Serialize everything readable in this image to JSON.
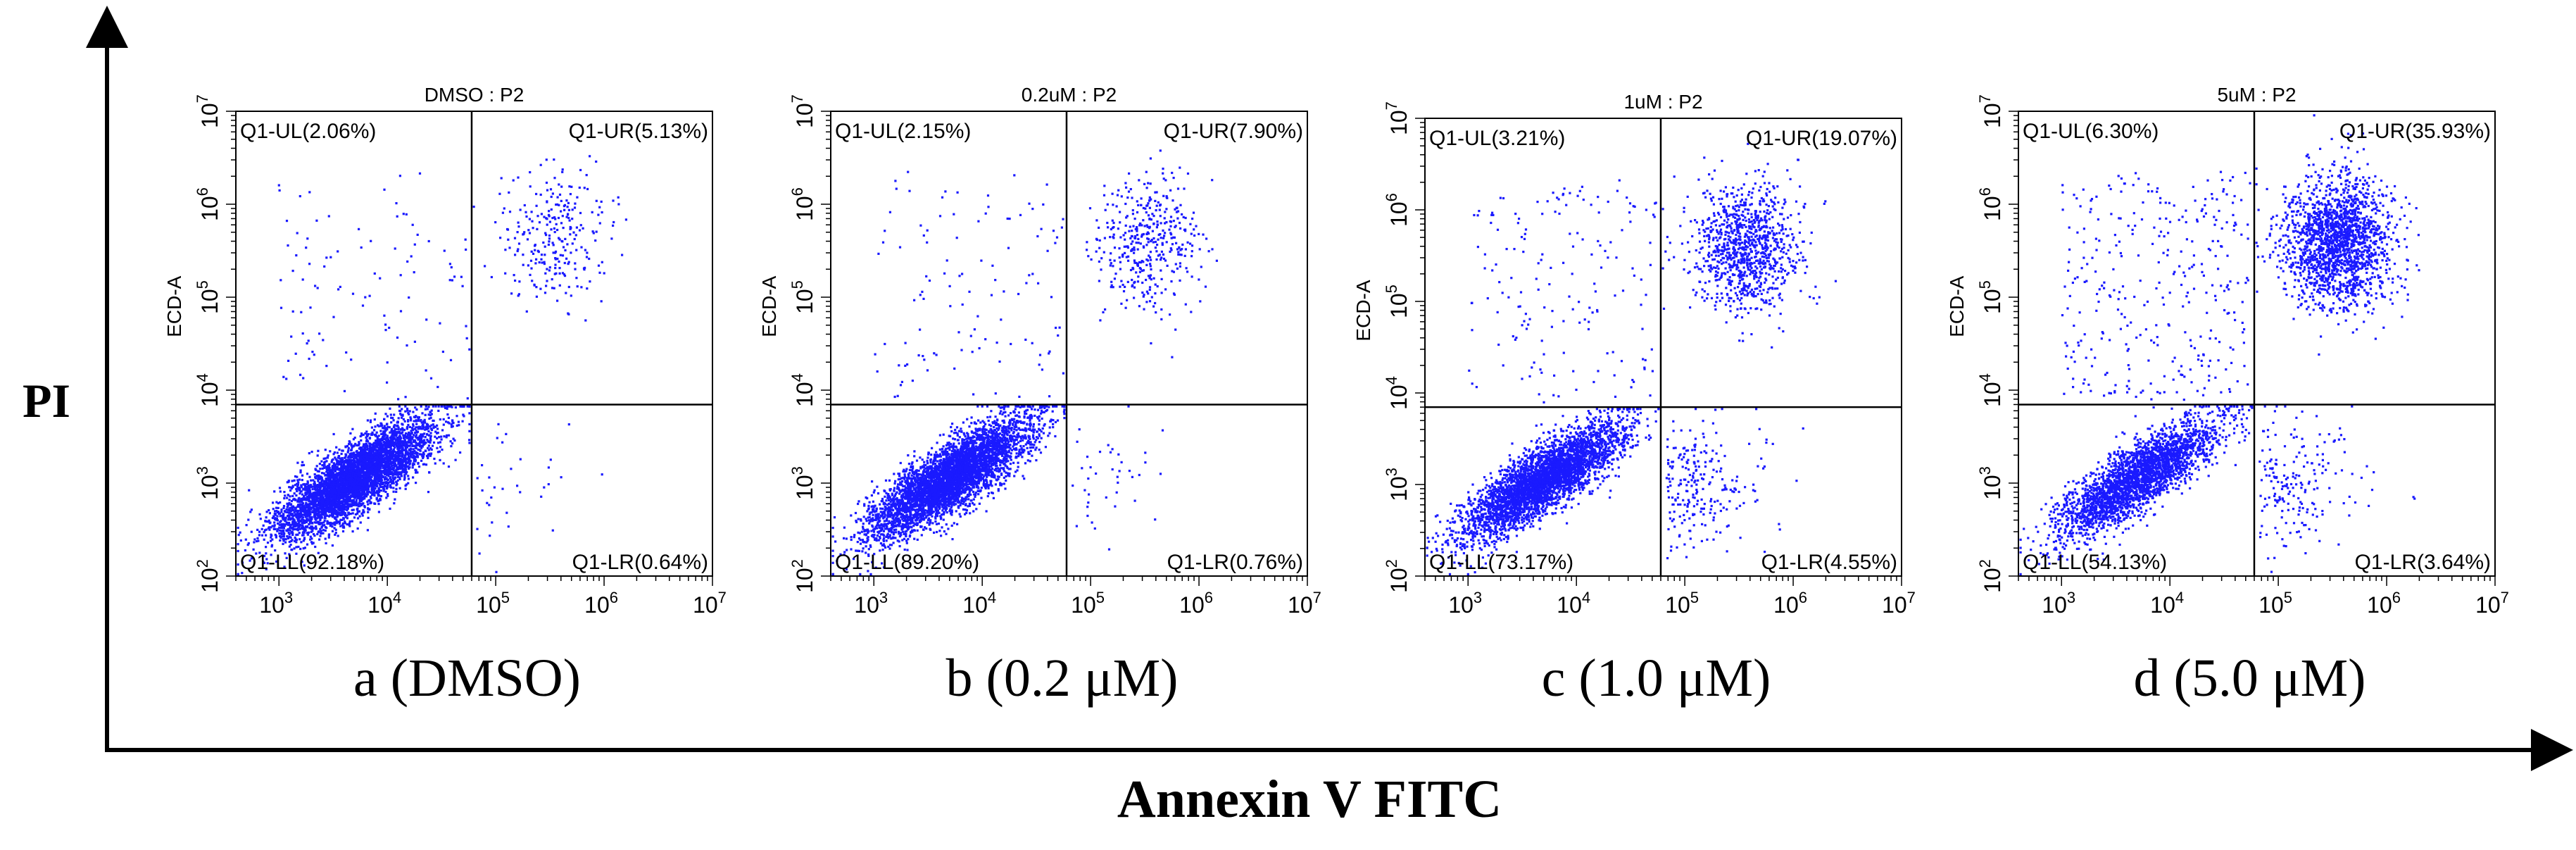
{
  "figure": {
    "y_axis_label": "PI",
    "x_axis_label": "Annexin V FITC"
  },
  "chart_data": [
    {
      "type": "scatter",
      "title": "DMSO : P2",
      "caption": "a (DMSO)",
      "xlabel": "",
      "ylabel": "ECD-A",
      "xscale": "log",
      "yscale": "log",
      "xlim": [
        400,
        10000000
      ],
      "ylim": [
        100,
        10000000
      ],
      "xticks": [
        {
          "b": "10",
          "e": "3",
          "v": 1000
        },
        {
          "b": "10",
          "e": "4",
          "v": 10000
        },
        {
          "b": "10",
          "e": "5",
          "v": 100000
        },
        {
          "b": "10",
          "e": "6",
          "v": 1000000
        },
        {
          "b": "10",
          "e": "7",
          "v": 10000000
        }
      ],
      "yticks": [
        {
          "b": "10",
          "e": "2",
          "v": 100
        },
        {
          "b": "10",
          "e": "3",
          "v": 1000
        },
        {
          "b": "10",
          "e": "4",
          "v": 10000
        },
        {
          "b": "10",
          "e": "5",
          "v": 100000
        },
        {
          "b": "10",
          "e": "6",
          "v": 1000000
        },
        {
          "b": "10",
          "e": "7",
          "v": 10000000
        }
      ],
      "gate": {
        "x": 60000,
        "y": 7000
      },
      "quadrants": {
        "UL": "Q1-UL(2.06%)",
        "UR": "Q1-UR(5.13%)",
        "LL": "Q1-LL(92.18%)",
        "LR": "Q1-LR(0.64%)"
      },
      "percentages": {
        "UL": 2.06,
        "UR": 5.13,
        "LL": 92.18,
        "LR": 0.64
      },
      "point_color": "#1a1aff"
    },
    {
      "type": "scatter",
      "title": "0.2uM : P2",
      "caption": "b (0.2 μM)",
      "xlabel": "",
      "ylabel": "ECD-A",
      "xscale": "log",
      "yscale": "log",
      "xlim": [
        400,
        10000000
      ],
      "ylim": [
        100,
        10000000
      ],
      "xticks": [
        {
          "b": "10",
          "e": "3",
          "v": 1000
        },
        {
          "b": "10",
          "e": "4",
          "v": 10000
        },
        {
          "b": "10",
          "e": "5",
          "v": 100000
        },
        {
          "b": "10",
          "e": "6",
          "v": 1000000
        },
        {
          "b": "10",
          "e": "7",
          "v": 10000000
        }
      ],
      "yticks": [
        {
          "b": "10",
          "e": "2",
          "v": 100
        },
        {
          "b": "10",
          "e": "3",
          "v": 1000
        },
        {
          "b": "10",
          "e": "4",
          "v": 10000
        },
        {
          "b": "10",
          "e": "5",
          "v": 100000
        },
        {
          "b": "10",
          "e": "6",
          "v": 1000000
        },
        {
          "b": "10",
          "e": "7",
          "v": 10000000
        }
      ],
      "gate": {
        "x": 60000,
        "y": 7000
      },
      "quadrants": {
        "UL": "Q1-UL(2.15%)",
        "UR": "Q1-UR(7.90%)",
        "LL": "Q1-LL(89.20%)",
        "LR": "Q1-LR(0.76%)"
      },
      "percentages": {
        "UL": 2.15,
        "UR": 7.9,
        "LL": 89.2,
        "LR": 0.76
      },
      "point_color": "#1a1aff"
    },
    {
      "type": "scatter",
      "title": "1uM : P2",
      "caption": "c (1.0 μM)",
      "xlabel": "",
      "ylabel": "ECD-A",
      "xscale": "log",
      "yscale": "log",
      "xlim": [
        400,
        10000000
      ],
      "ylim": [
        100,
        10000000
      ],
      "xticks": [
        {
          "b": "10",
          "e": "3",
          "v": 1000
        },
        {
          "b": "10",
          "e": "4",
          "v": 10000
        },
        {
          "b": "10",
          "e": "5",
          "v": 100000
        },
        {
          "b": "10",
          "e": "6",
          "v": 1000000
        },
        {
          "b": "10",
          "e": "7",
          "v": 10000000
        }
      ],
      "yticks": [
        {
          "b": "10",
          "e": "2",
          "v": 100
        },
        {
          "b": "10",
          "e": "3",
          "v": 1000
        },
        {
          "b": "10",
          "e": "4",
          "v": 10000
        },
        {
          "b": "10",
          "e": "5",
          "v": 100000
        },
        {
          "b": "10",
          "e": "6",
          "v": 1000000
        },
        {
          "b": "10",
          "e": "7",
          "v": 10000000
        }
      ],
      "gate": {
        "x": 60000,
        "y": 7000
      },
      "quadrants": {
        "UL": "Q1-UL(3.21%)",
        "UR": "Q1-UR(19.07%)",
        "LL": "Q1-LL(73.17%)",
        "LR": "Q1-LR(4.55%)"
      },
      "percentages": {
        "UL": 3.21,
        "UR": 19.07,
        "LL": 73.17,
        "LR": 4.55
      },
      "point_color": "#1a1aff"
    },
    {
      "type": "scatter",
      "title": "5uM : P2",
      "caption": "d (5.0 μM)",
      "xlabel": "",
      "ylabel": "ECD-A",
      "xscale": "log",
      "yscale": "log",
      "xlim": [
        400,
        10000000
      ],
      "ylim": [
        100,
        10000000
      ],
      "xticks": [
        {
          "b": "10",
          "e": "3",
          "v": 1000
        },
        {
          "b": "10",
          "e": "4",
          "v": 10000
        },
        {
          "b": "10",
          "e": "5",
          "v": 100000
        },
        {
          "b": "10",
          "e": "6",
          "v": 1000000
        },
        {
          "b": "10",
          "e": "7",
          "v": 10000000
        }
      ],
      "yticks": [
        {
          "b": "10",
          "e": "2",
          "v": 100
        },
        {
          "b": "10",
          "e": "3",
          "v": 1000
        },
        {
          "b": "10",
          "e": "4",
          "v": 10000
        },
        {
          "b": "10",
          "e": "5",
          "v": 100000
        },
        {
          "b": "10",
          "e": "6",
          "v": 1000000
        },
        {
          "b": "10",
          "e": "7",
          "v": 10000000
        }
      ],
      "gate": {
        "x": 60000,
        "y": 7000
      },
      "quadrants": {
        "UL": "Q1-UL(6.30%)",
        "UR": "Q1-UR(35.93%)",
        "LL": "Q1-LL(54.13%)",
        "LR": "Q1-LR(3.64%)"
      },
      "percentages": {
        "UL": 6.3,
        "UR": 35.93,
        "LL": 54.13,
        "LR": 3.64
      },
      "point_color": "#1a1aff"
    }
  ]
}
